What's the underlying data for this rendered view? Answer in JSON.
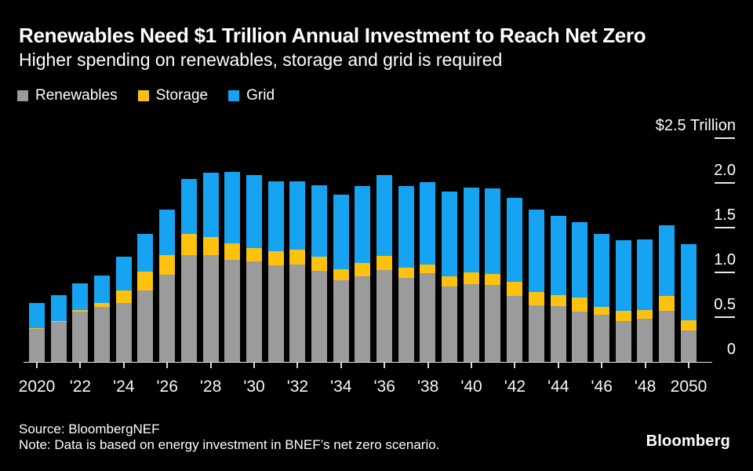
{
  "header": {
    "title": "Renewables Need $1 Trillion Annual Investment to Reach Net Zero",
    "subtitle": "Higher spending on renewables, storage and grid is required"
  },
  "chart_data": {
    "type": "bar",
    "stacked": true,
    "legend_position": "top-left",
    "grid": false,
    "background": "#000000",
    "categories": [
      "2020",
      "2021",
      "2022",
      "2023",
      "2024",
      "2025",
      "2026",
      "2027",
      "2028",
      "2029",
      "2030",
      "2031",
      "2032",
      "2033",
      "2034",
      "2035",
      "2036",
      "2037",
      "2038",
      "2039",
      "2040",
      "2041",
      "2042",
      "2043",
      "2044",
      "2045",
      "2046",
      "2047",
      "2048",
      "2049",
      "2050"
    ],
    "x_tick_labels": [
      "2020",
      "'22",
      "'24",
      "'26",
      "'28",
      "'30",
      "'32",
      "'34",
      "'36",
      "'38",
      "'40",
      "'42",
      "'44",
      "'46",
      "'48",
      "2050"
    ],
    "series": [
      {
        "name": "Renewables",
        "color": "#9b9b9b",
        "values": [
          0.37,
          0.45,
          0.56,
          0.61,
          0.66,
          0.8,
          0.97,
          1.19,
          1.19,
          1.14,
          1.12,
          1.08,
          1.09,
          1.02,
          0.91,
          0.96,
          1.03,
          0.94,
          0.99,
          0.84,
          0.87,
          0.86,
          0.74,
          0.63,
          0.62,
          0.56,
          0.53,
          0.46,
          0.48,
          0.57,
          0.35
        ]
      },
      {
        "name": "Storage",
        "color": "#fcc20d",
        "values": [
          0.01,
          0.01,
          0.02,
          0.04,
          0.14,
          0.21,
          0.22,
          0.24,
          0.2,
          0.18,
          0.15,
          0.16,
          0.17,
          0.16,
          0.12,
          0.15,
          0.16,
          0.11,
          0.1,
          0.11,
          0.13,
          0.12,
          0.16,
          0.15,
          0.12,
          0.16,
          0.09,
          0.11,
          0.1,
          0.17,
          0.11
        ]
      },
      {
        "name": "Grid",
        "color": "#15a3f2",
        "values": [
          0.28,
          0.29,
          0.3,
          0.31,
          0.38,
          0.42,
          0.51,
          0.61,
          0.72,
          0.8,
          0.82,
          0.78,
          0.76,
          0.8,
          0.83,
          0.86,
          0.9,
          0.91,
          0.92,
          0.95,
          0.95,
          0.96,
          0.94,
          0.92,
          0.89,
          0.84,
          0.82,
          0.79,
          0.79,
          0.79,
          0.85
        ]
      }
    ],
    "ylim": [
      0,
      2.5
    ],
    "yticks": [
      0,
      0.5,
      1.0,
      1.5,
      2.0,
      2.5
    ],
    "ytick_labels": [
      "0",
      "0.5",
      "1.0",
      "1.5",
      "2.0",
      "$2.5 Trillion"
    ],
    "unit": "USD trillion"
  },
  "footer": {
    "source": "Source: BloombergNEF",
    "note": "Note: Data is based on energy investment in BNEF’s net zero scenario.",
    "brand": "Bloomberg"
  }
}
